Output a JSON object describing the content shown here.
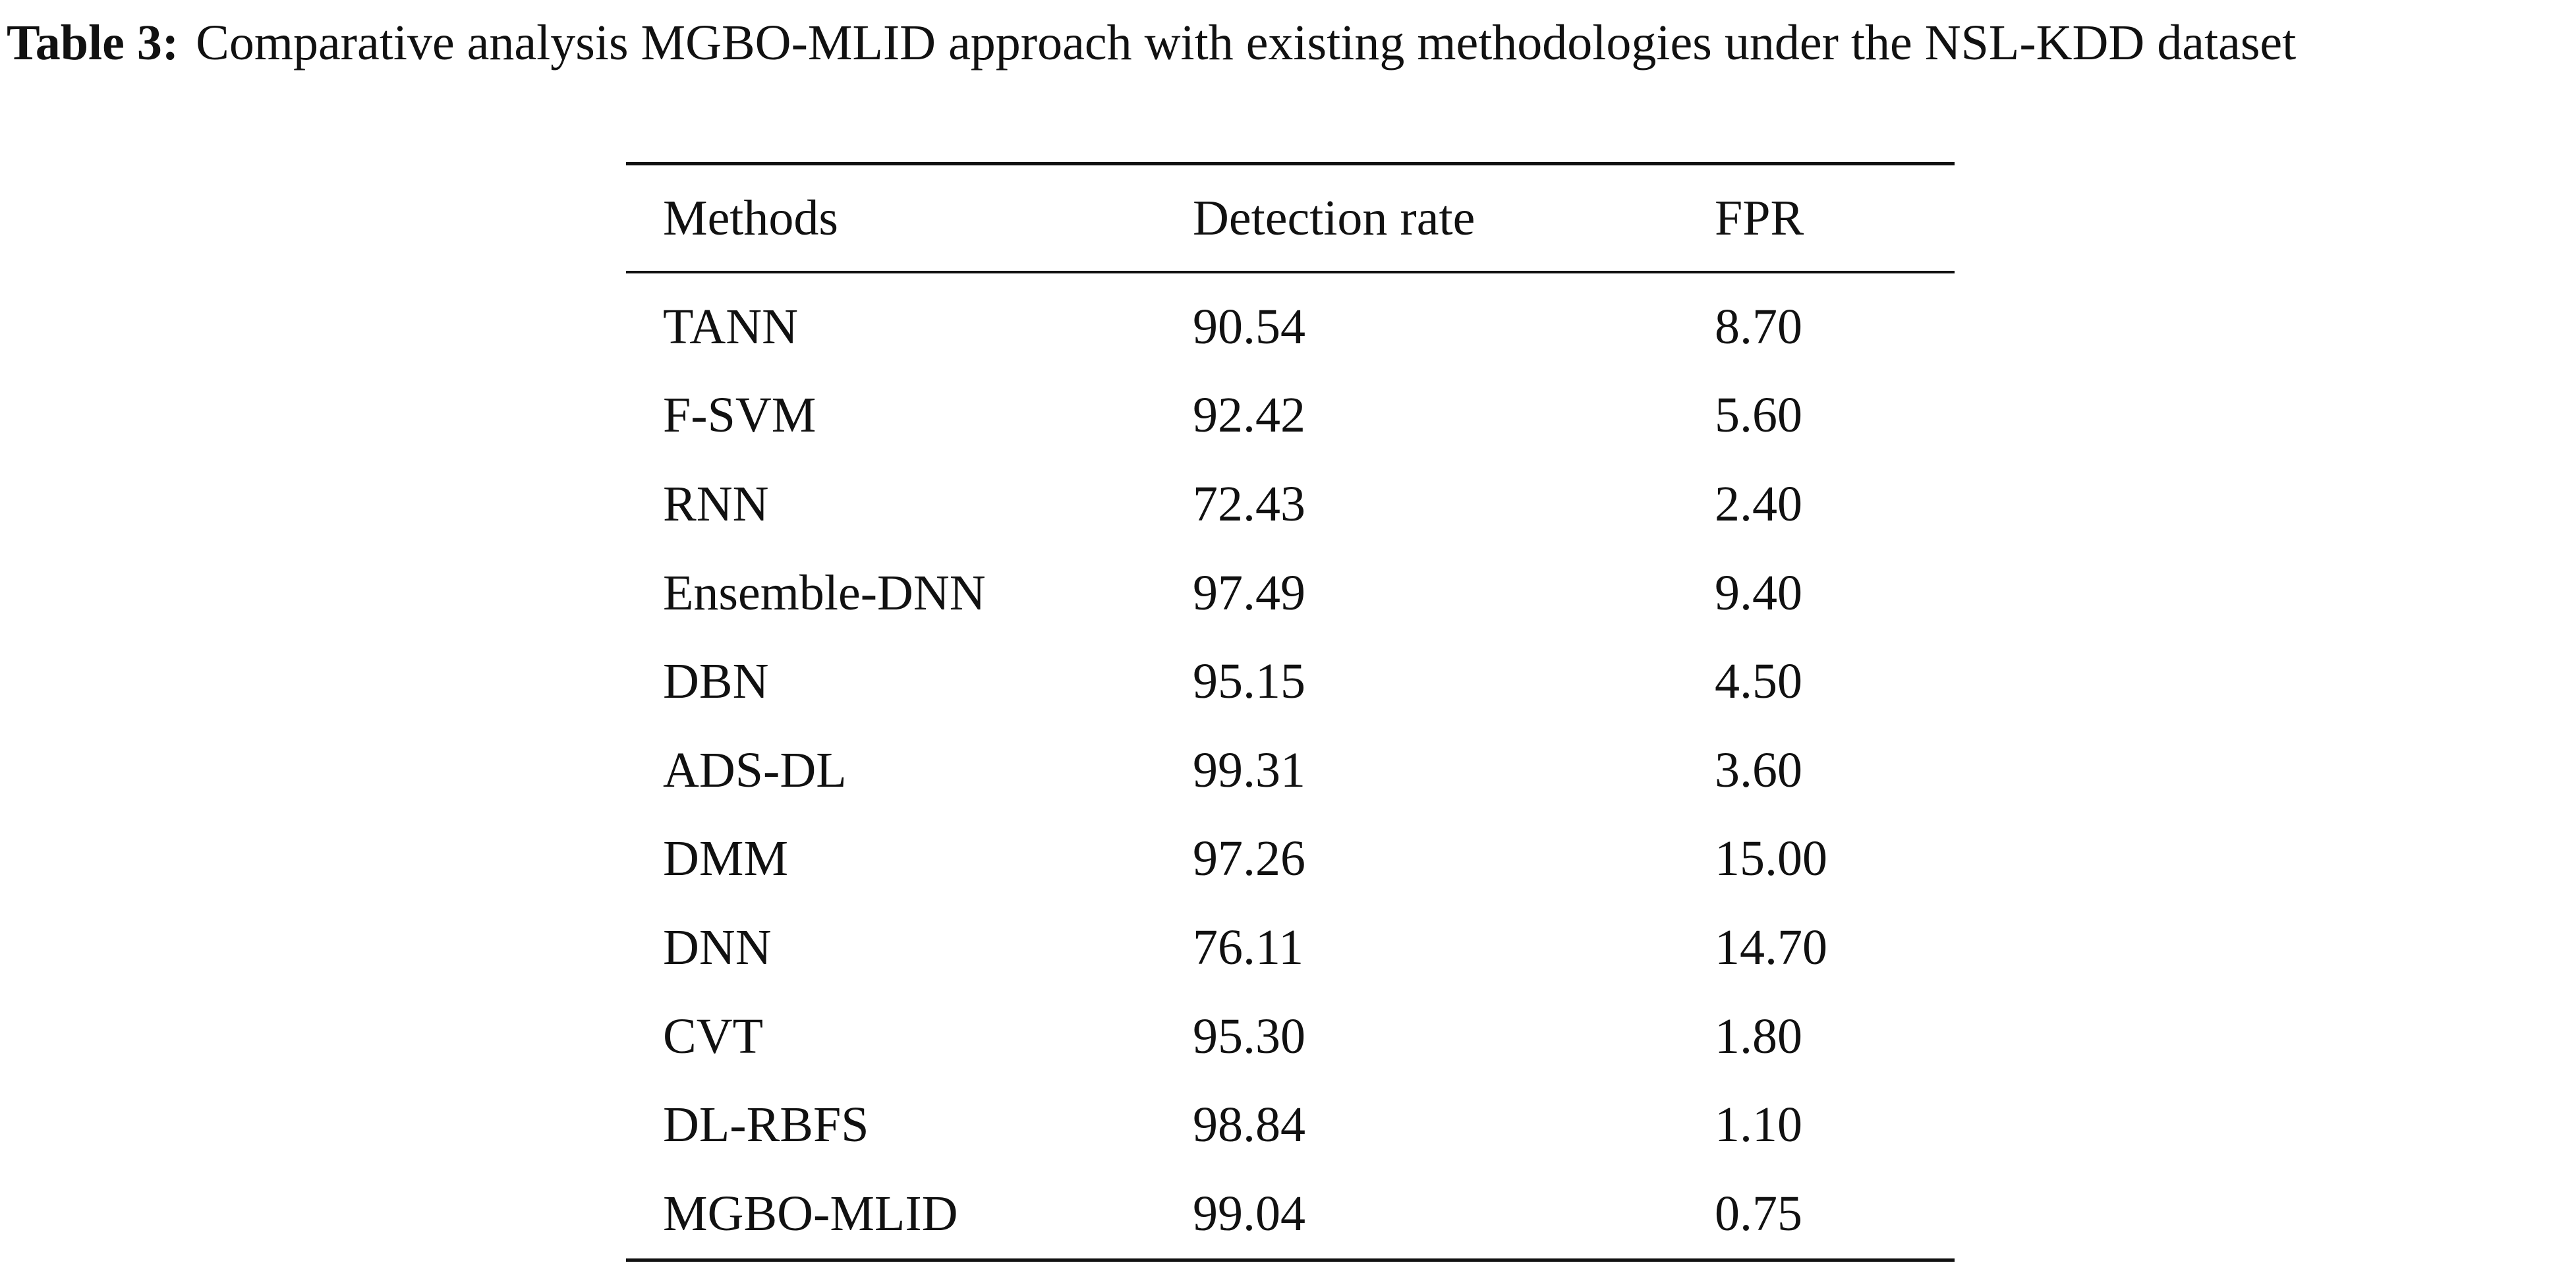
{
  "caption": {
    "label": "Table 3:",
    "text": "Comparative analysis MGBO-MLID approach with existing methodologies under the NSL-KDD dataset"
  },
  "table": {
    "headers": [
      "Methods",
      "Detection rate",
      "FPR"
    ],
    "rows": [
      [
        "TANN",
        "90.54",
        "8.70"
      ],
      [
        "F-SVM",
        "92.42",
        "5.60"
      ],
      [
        "RNN",
        "72.43",
        "2.40"
      ],
      [
        "Ensemble-DNN",
        "97.49",
        "9.40"
      ],
      [
        "DBN",
        "95.15",
        "4.50"
      ],
      [
        "ADS-DL",
        "99.31",
        "3.60"
      ],
      [
        "DMM",
        "97.26",
        "15.00"
      ],
      [
        "DNN",
        "76.11",
        "14.70"
      ],
      [
        "CVT",
        "95.30",
        "1.80"
      ],
      [
        "DL-RBFS",
        "98.84",
        "1.10"
      ],
      [
        "MGBO-MLID",
        "99.04",
        "0.75"
      ]
    ]
  },
  "chart_data": {
    "type": "table",
    "title": "Comparative analysis MGBO-MLID approach with existing methodologies under the NSL-KDD dataset",
    "columns": [
      "Methods",
      "Detection rate",
      "FPR"
    ],
    "categories": [
      "TANN",
      "F-SVM",
      "RNN",
      "Ensemble-DNN",
      "DBN",
      "ADS-DL",
      "DMM",
      "DNN",
      "CVT",
      "DL-RBFS",
      "MGBO-MLID"
    ],
    "series": [
      {
        "name": "Detection rate",
        "values": [
          90.54,
          92.42,
          72.43,
          97.49,
          95.15,
          99.31,
          97.26,
          76.11,
          95.3,
          98.84,
          99.04
        ]
      },
      {
        "name": "FPR",
        "values": [
          8.7,
          5.6,
          2.4,
          9.4,
          4.5,
          3.6,
          15.0,
          14.7,
          1.8,
          1.1,
          0.75
        ]
      }
    ]
  }
}
